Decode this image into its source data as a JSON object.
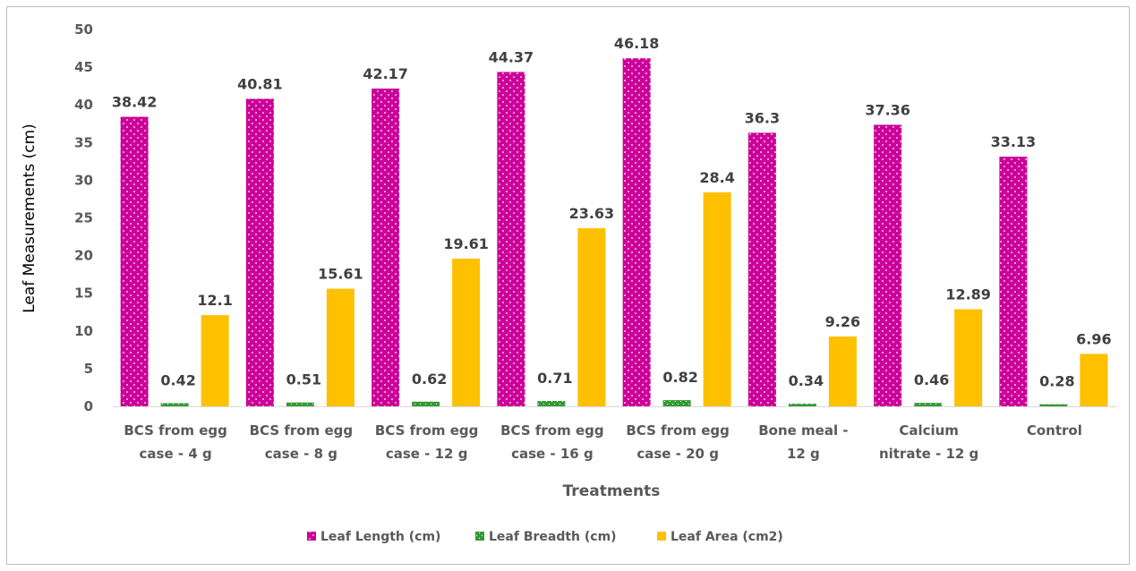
{
  "chart_data": {
    "type": "bar",
    "title": "",
    "xlabel": "Treatments",
    "ylabel": "Leaf Measurements (cm)",
    "ylim": [
      0,
      50
    ],
    "yticks": [
      0,
      5,
      10,
      15,
      20,
      25,
      30,
      35,
      40,
      45,
      50
    ],
    "grid": false,
    "legend_position": "bottom",
    "categories": [
      [
        "BCS from egg",
        "case - 4 g"
      ],
      [
        "BCS from egg",
        "case - 8 g"
      ],
      [
        "BCS from egg",
        "case - 12 g"
      ],
      [
        "BCS from egg",
        "case - 16 g"
      ],
      [
        "BCS from egg",
        "case -  20 g"
      ],
      [
        "Bone meal -",
        "12 g"
      ],
      [
        "Calcium",
        "nitrate - 12 g"
      ],
      [
        "Control"
      ]
    ],
    "series": [
      {
        "name": "Leaf Length (cm)",
        "color": "#cc0099",
        "pattern": "dotted",
        "values": [
          38.42,
          40.81,
          42.17,
          44.37,
          46.18,
          36.3,
          37.36,
          33.13
        ]
      },
      {
        "name": "Leaf Breadth (cm)",
        "color": "#339933",
        "pattern": "dotted",
        "values": [
          0.42,
          0.51,
          0.62,
          0.71,
          0.82,
          0.34,
          0.46,
          0.28
        ]
      },
      {
        "name": "Leaf Area (cm2)",
        "color": "#ffc000",
        "pattern": "solid",
        "values": [
          12.1,
          15.61,
          19.61,
          23.63,
          28.4,
          9.26,
          12.89,
          6.96
        ]
      }
    ]
  }
}
